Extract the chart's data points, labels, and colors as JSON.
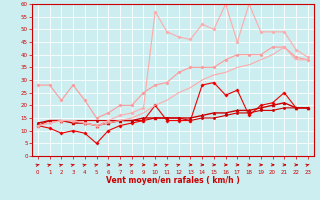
{
  "bg_color": "#cceef0",
  "grid_color": "#ffffff",
  "xlabel": "Vent moyen/en rafales ( km/h )",
  "xlim": [
    -0.5,
    23.5
  ],
  "ylim": [
    0,
    60
  ],
  "yticks": [
    0,
    5,
    10,
    15,
    20,
    25,
    30,
    35,
    40,
    45,
    50,
    55,
    60
  ],
  "xticks": [
    0,
    1,
    2,
    3,
    4,
    5,
    6,
    7,
    8,
    9,
    10,
    11,
    12,
    13,
    14,
    15,
    16,
    17,
    18,
    19,
    20,
    21,
    22,
    23
  ],
  "lines": [
    {
      "x": [
        0,
        1,
        2,
        3,
        4,
        5,
        6,
        7,
        8,
        9,
        10,
        11,
        12,
        13,
        14,
        15,
        16,
        17,
        18,
        19,
        20,
        21,
        22,
        23
      ],
      "y": [
        12,
        14,
        14,
        14,
        14,
        14,
        14,
        14,
        14,
        14,
        15,
        15,
        15,
        14,
        15,
        15,
        16,
        17,
        17,
        18,
        18,
        19,
        19,
        19
      ],
      "color": "#cc0000",
      "lw": 0.8,
      "marker": "o",
      "ms": 1.5
    },
    {
      "x": [
        0,
        1,
        2,
        3,
        4,
        5,
        6,
        7,
        8,
        9,
        10,
        11,
        12,
        13,
        14,
        15,
        16,
        17,
        18,
        19,
        20,
        21,
        22,
        23
      ],
      "y": [
        12,
        11,
        9,
        10,
        9,
        5,
        10,
        12,
        13,
        14,
        20,
        14,
        14,
        14,
        28,
        29,
        24,
        26,
        16,
        20,
        21,
        25,
        19,
        19
      ],
      "color": "#ee0000",
      "lw": 0.8,
      "marker": "P",
      "ms": 2.0
    },
    {
      "x": [
        0,
        1,
        2,
        3,
        4,
        5,
        6,
        7,
        8,
        9,
        10,
        11,
        12,
        13,
        14,
        15,
        16,
        17,
        18,
        19,
        20,
        21,
        22,
        23
      ],
      "y": [
        13,
        14,
        14,
        13,
        13,
        12,
        13,
        14,
        14,
        15,
        15,
        15,
        15,
        15,
        16,
        17,
        17,
        18,
        18,
        19,
        20,
        21,
        19,
        19
      ],
      "color": "#cc0000",
      "lw": 1.0,
      "marker": "^",
      "ms": 2.0
    },
    {
      "x": [
        0,
        1,
        2,
        3,
        4,
        5,
        6,
        7,
        8,
        9,
        10,
        11,
        12,
        13,
        14,
        15,
        16,
        17,
        18,
        19,
        20,
        21,
        22,
        23
      ],
      "y": [
        28,
        28,
        22,
        28,
        22,
        15,
        17,
        20,
        20,
        25,
        28,
        29,
        33,
        35,
        35,
        35,
        38,
        40,
        40,
        40,
        43,
        43,
        39,
        38
      ],
      "color": "#ff9999",
      "lw": 0.8,
      "marker": "D",
      "ms": 1.5
    },
    {
      "x": [
        0,
        1,
        2,
        3,
        4,
        5,
        6,
        7,
        8,
        9,
        10,
        11,
        12,
        13,
        14,
        15,
        16,
        17,
        18,
        19,
        20,
        21,
        22,
        23
      ],
      "y": [
        12,
        13,
        14,
        14,
        13,
        12,
        13,
        14,
        15,
        17,
        20,
        22,
        25,
        27,
        30,
        32,
        33,
        35,
        36,
        38,
        40,
        43,
        38,
        38
      ],
      "color": "#ffaaaa",
      "lw": 0.8,
      "marker": null,
      "ms": 0
    },
    {
      "x": [
        0,
        1,
        2,
        3,
        4,
        5,
        6,
        7,
        8,
        9,
        10,
        11,
        12,
        13,
        14,
        15,
        16,
        17,
        18,
        19,
        20,
        21,
        22,
        23
      ],
      "y": [
        12,
        13,
        14,
        14,
        13,
        12,
        14,
        16,
        17,
        19,
        57,
        49,
        47,
        46,
        52,
        50,
        60,
        45,
        60,
        49,
        49,
        49,
        42,
        39
      ],
      "color": "#ffaaaa",
      "lw": 0.8,
      "marker": "D",
      "ms": 1.5
    }
  ],
  "wind_directions": [
    45,
    45,
    45,
    45,
    45,
    45,
    0,
    0,
    45,
    0,
    0,
    45,
    45,
    0,
    0,
    0,
    0,
    0,
    0,
    0,
    0,
    0,
    0,
    45
  ],
  "arrow_color": "#cc0000"
}
